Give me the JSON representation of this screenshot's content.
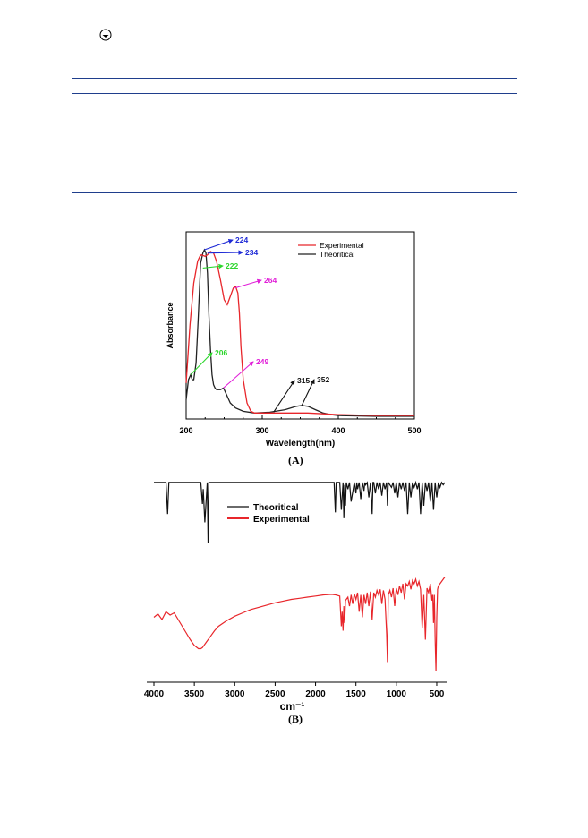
{
  "header": {
    "icon": "circle-dot-icon"
  },
  "panel_a": {
    "label": "(A)"
  },
  "panel_b": {
    "label": "(B)"
  },
  "chart_data": [
    {
      "type": "line",
      "xlabel": "Wavelength(nm)",
      "ylabel": "Absorbance",
      "xlim": [
        200,
        500
      ],
      "xticks": [
        200,
        300,
        400,
        500
      ],
      "legend_placement": "top-right",
      "grid": false,
      "series": [
        {
          "name": "Experimental",
          "color": "#e8262b",
          "x": [
            200,
            205,
            210,
            215,
            218,
            220,
            225,
            228,
            232,
            236,
            240,
            245,
            250,
            254,
            258,
            262,
            265,
            268,
            270,
            272,
            275,
            280,
            285,
            290,
            300,
            320,
            340,
            360,
            380,
            400,
            450,
            500
          ],
          "y": [
            0.2,
            0.55,
            0.8,
            0.93,
            0.96,
            0.97,
            0.96,
            0.97,
            0.99,
            0.98,
            0.93,
            0.82,
            0.7,
            0.67,
            0.72,
            0.77,
            0.78,
            0.74,
            0.62,
            0.42,
            0.22,
            0.08,
            0.03,
            0.02,
            0.02,
            0.02,
            0.02,
            0.02,
            0.015,
            0.01,
            0.005,
            0.005
          ]
        },
        {
          "name": "Theoritical",
          "color": "#222222",
          "x": [
            200,
            203,
            206,
            208,
            210,
            213,
            216,
            219,
            222,
            224,
            226,
            228,
            230,
            232,
            234,
            236,
            238,
            240,
            242,
            245,
            249,
            253,
            258,
            265,
            275,
            290,
            310,
            330,
            345,
            352,
            360,
            370,
            380,
            390,
            400,
            450,
            500
          ],
          "y": [
            0.1,
            0.22,
            0.25,
            0.22,
            0.22,
            0.32,
            0.6,
            0.92,
            0.98,
            1.0,
            0.98,
            0.86,
            0.6,
            0.4,
            0.25,
            0.19,
            0.17,
            0.16,
            0.16,
            0.16,
            0.17,
            0.13,
            0.08,
            0.05,
            0.03,
            0.02,
            0.025,
            0.04,
            0.06,
            0.065,
            0.06,
            0.04,
            0.02,
            0.01,
            0.005,
            0.0,
            0.0
          ]
        }
      ],
      "annotations": [
        {
          "text": "224",
          "color": "#1f2bd6",
          "point": [
            224,
            1.0
          ]
        },
        {
          "text": "234",
          "color": "#1f2bd6",
          "point": [
            228,
            0.98
          ]
        },
        {
          "text": "222",
          "color": "#2ed62e",
          "point": [
            222,
            0.89
          ]
        },
        {
          "text": "264",
          "color": "#e11fd8",
          "point": [
            264,
            0.77
          ]
        },
        {
          "text": "206",
          "color": "#2ed62e",
          "point": [
            206,
            0.25
          ]
        },
        {
          "text": "249",
          "color": "#e11fd8",
          "point": [
            249,
            0.17
          ]
        },
        {
          "text": "315",
          "color": "#111111",
          "point": [
            315,
            0.025
          ]
        },
        {
          "text": "352",
          "color": "#111111",
          "point": [
            352,
            0.065
          ]
        }
      ]
    },
    {
      "type": "line",
      "xlabel": "cm⁻¹",
      "xlim": [
        4000,
        400
      ],
      "xticks": [
        4000,
        3500,
        3000,
        2500,
        2000,
        1500,
        1000,
        500
      ],
      "legend_placement": "top-left",
      "grid": false,
      "series": [
        {
          "name": "Theoritical",
          "color": "#111111",
          "x": [
            4000,
            3850,
            3830,
            3815,
            3800,
            3420,
            3400,
            3390,
            3370,
            3340,
            3330,
            3320,
            3300,
            3250,
            1770,
            1755,
            1745,
            1730,
            1700,
            1680,
            1660,
            1650,
            1640,
            1630,
            1620,
            1600,
            1580,
            1560,
            1520,
            1500,
            1490,
            1480,
            1460,
            1440,
            1420,
            1400,
            1390,
            1380,
            1360,
            1340,
            1320,
            1300,
            1290,
            1280,
            1260,
            1240,
            1220,
            1200,
            1180,
            1160,
            1140,
            1120,
            1110,
            1100,
            1080,
            1060,
            1040,
            1020,
            1000,
            980,
            960,
            940,
            920,
            900,
            880,
            860,
            840,
            820,
            800,
            780,
            760,
            740,
            720,
            700,
            680,
            660,
            640,
            620,
            600,
            580,
            560,
            540,
            520,
            500,
            480,
            460,
            440,
            420,
            400
          ],
          "y": [
            0.98,
            0.98,
            0.6,
            0.98,
            0.98,
            0.98,
            0.72,
            0.9,
            0.5,
            0.98,
            0.25,
            0.98,
            0.98,
            0.98,
            0.98,
            0.62,
            0.98,
            0.98,
            0.98,
            0.65,
            0.98,
            0.55,
            0.95,
            0.7,
            0.98,
            0.9,
            0.98,
            0.75,
            0.98,
            0.85,
            0.98,
            0.9,
            0.98,
            0.78,
            0.98,
            0.88,
            0.98,
            0.95,
            0.98,
            0.8,
            0.98,
            0.6,
            0.98,
            0.98,
            0.85,
            0.98,
            0.9,
            0.98,
            0.82,
            0.98,
            0.9,
            0.98,
            0.7,
            0.98,
            0.95,
            0.92,
            0.98,
            0.85,
            0.98,
            0.8,
            0.98,
            0.9,
            0.98,
            0.88,
            0.98,
            0.6,
            0.98,
            0.8,
            0.98,
            0.92,
            0.98,
            0.9,
            0.98,
            0.6,
            0.98,
            0.7,
            0.98,
            0.88,
            0.98,
            0.75,
            0.98,
            0.65,
            0.98,
            0.8,
            0.98,
            0.92,
            0.98,
            0.95,
            0.98
          ]
        },
        {
          "name": "Experimental",
          "color": "#e8262b",
          "x": [
            4000,
            3950,
            3900,
            3850,
            3800,
            3750,
            3700,
            3650,
            3600,
            3550,
            3500,
            3450,
            3420,
            3400,
            3350,
            3300,
            3250,
            3200,
            3100,
            3000,
            2900,
            2800,
            2700,
            2600,
            2500,
            2400,
            2300,
            2200,
            2100,
            2000,
            1900,
            1800,
            1750,
            1700,
            1680,
            1670,
            1660,
            1650,
            1640,
            1630,
            1600,
            1580,
            1560,
            1540,
            1520,
            1500,
            1480,
            1460,
            1440,
            1420,
            1400,
            1380,
            1360,
            1340,
            1320,
            1300,
            1280,
            1260,
            1240,
            1220,
            1200,
            1180,
            1160,
            1140,
            1120,
            1110,
            1100,
            1080,
            1060,
            1040,
            1020,
            1000,
            980,
            960,
            940,
            920,
            900,
            880,
            860,
            840,
            820,
            800,
            780,
            760,
            740,
            720,
            700,
            680,
            660,
            640,
            620,
            600,
            580,
            560,
            550,
            540,
            530,
            520,
            510,
            500,
            490,
            480,
            460,
            440,
            420,
            400
          ],
          "y": [
            0.5,
            0.53,
            0.48,
            0.55,
            0.52,
            0.54,
            0.48,
            0.42,
            0.36,
            0.3,
            0.25,
            0.22,
            0.22,
            0.23,
            0.28,
            0.33,
            0.38,
            0.42,
            0.47,
            0.51,
            0.54,
            0.57,
            0.59,
            0.61,
            0.63,
            0.645,
            0.66,
            0.67,
            0.68,
            0.69,
            0.7,
            0.705,
            0.7,
            0.69,
            0.42,
            0.55,
            0.38,
            0.6,
            0.45,
            0.65,
            0.68,
            0.6,
            0.7,
            0.62,
            0.71,
            0.66,
            0.72,
            0.55,
            0.7,
            0.5,
            0.7,
            0.62,
            0.72,
            0.6,
            0.73,
            0.48,
            0.72,
            0.68,
            0.74,
            0.7,
            0.75,
            0.62,
            0.74,
            0.66,
            0.35,
            0.1,
            0.7,
            0.74,
            0.68,
            0.76,
            0.6,
            0.76,
            0.7,
            0.78,
            0.72,
            0.8,
            0.66,
            0.8,
            0.78,
            0.82,
            0.75,
            0.83,
            0.8,
            0.84,
            0.78,
            0.82,
            0.75,
            0.4,
            0.7,
            0.3,
            0.76,
            0.72,
            0.8,
            0.65,
            0.7,
            0.45,
            0.7,
            0.3,
            0.02,
            0.5,
            0.75,
            0.78,
            0.8,
            0.82,
            0.84,
            0.86
          ]
        }
      ]
    }
  ]
}
